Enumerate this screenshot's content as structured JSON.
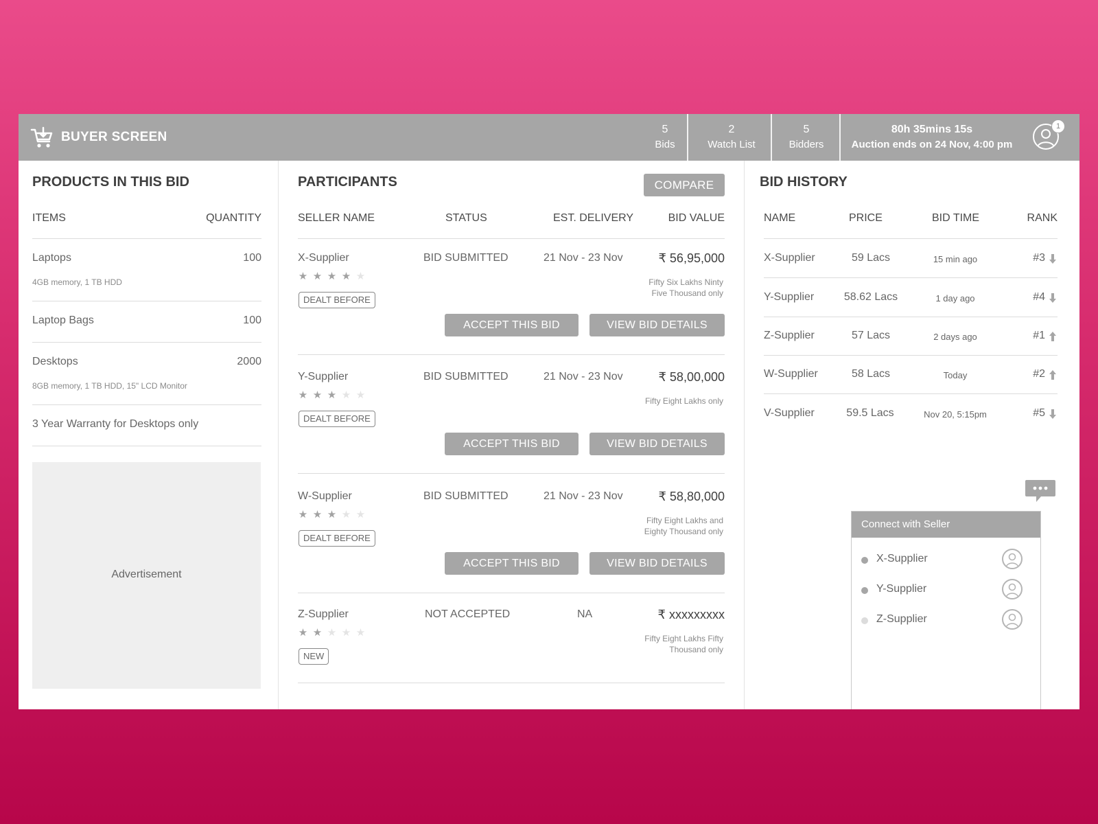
{
  "app": {
    "title": "BUYER SCREEN"
  },
  "stats": [
    {
      "value": "5",
      "label": "Bids"
    },
    {
      "value": "2",
      "label": "Watch List"
    },
    {
      "value": "5",
      "label": "Bidders"
    }
  ],
  "timer": {
    "countdown": "80h 35mins 15s",
    "ends": "Auction ends on 24 Nov, 4:00 pm"
  },
  "notifications": {
    "count": "1"
  },
  "products": {
    "heading": "PRODUCTS IN THIS BID",
    "col_items": "ITEMS",
    "col_qty": "QUANTITY",
    "items": [
      {
        "name": "Laptops",
        "qty": "100",
        "desc": "4GB memory, 1 TB HDD"
      },
      {
        "name": "Laptop Bags",
        "qty": "100",
        "desc": ""
      },
      {
        "name": "Desktops",
        "qty": "2000",
        "desc": "8GB memory, 1 TB HDD, 15\" LCD Monitor"
      },
      {
        "name": "3 Year Warranty for Desktops only",
        "qty": "",
        "desc": ""
      }
    ],
    "advertisement": "Advertisement"
  },
  "participants": {
    "heading": "PARTICIPANTS",
    "compare_label": "COMPARE",
    "columns": [
      "SELLER NAME",
      "STATUS",
      "EST. DELIVERY",
      "BID VALUE"
    ],
    "accept_label": "ACCEPT THIS BID",
    "details_label": "VIEW BID DETAILS",
    "rows": [
      {
        "seller": "X-Supplier",
        "rating": 4,
        "tag": "DEALT BEFORE",
        "status": "BID SUBMITTED",
        "delivery": "21 Nov - 23 Nov",
        "value": "₹ 56,95,000",
        "words1": "Fifty Six Lakhs Ninty",
        "words2": "Five Thousand only"
      },
      {
        "seller": "Y-Supplier",
        "rating": 3,
        "tag": "DEALT BEFORE",
        "status": "BID SUBMITTED",
        "delivery": "21 Nov - 23 Nov",
        "value": "₹ 58,00,000",
        "words1": "Fifty Eight Lakhs only",
        "words2": ""
      },
      {
        "seller": "W-Supplier",
        "rating": 3,
        "tag": "DEALT BEFORE",
        "status": "BID SUBMITTED",
        "delivery": "21 Nov - 23 Nov",
        "value": "₹ 58,80,000",
        "words1": "Fifty Eight Lakhs and",
        "words2": "Eighty Thousand only"
      },
      {
        "seller": "Z-Supplier",
        "rating": 2,
        "tag": "NEW",
        "status": "NOT ACCEPTED",
        "delivery": "NA",
        "value": "₹ xxxxxxxxx",
        "words1": "Fifty Eight Lakhs Fifty",
        "words2": "Thousand only"
      }
    ]
  },
  "history": {
    "heading": "BID HISTORY",
    "columns": [
      "NAME",
      "PRICE",
      "BID TIME",
      "RANK"
    ],
    "rows": [
      {
        "name": "X-Supplier",
        "price": "59 Lacs",
        "time": "15 min ago",
        "rank": "#3",
        "trend": "down"
      },
      {
        "name": "Y-Supplier",
        "price": "58.62 Lacs",
        "time": "1 day ago",
        "rank": "#4",
        "trend": "down"
      },
      {
        "name": "Z-Supplier",
        "price": "57 Lacs",
        "time": "2 days ago",
        "rank": "#1",
        "trend": "up"
      },
      {
        "name": "W-Supplier",
        "price": "58 Lacs",
        "time": "Today",
        "rank": "#2",
        "trend": "up"
      },
      {
        "name": "V-Supplier",
        "price": "59.5 Lacs",
        "time": "Nov 20, 5:15pm",
        "rank": "#5",
        "trend": "down"
      }
    ]
  },
  "chat": {
    "heading": "Connect with Seller",
    "sellers": [
      {
        "name": "X-Supplier",
        "status": "online",
        "dot_color": "#a6a6a6"
      },
      {
        "name": "Y-Supplier",
        "status": "online",
        "dot_color": "#a6a6a6"
      },
      {
        "name": "Z-Supplier",
        "status": "offline",
        "dot_color": "#dcdcdc"
      }
    ]
  },
  "colors": {
    "bar": "#a6a6a6",
    "background_top": "#ea4b8a",
    "background_bottom": "#b7064a"
  }
}
